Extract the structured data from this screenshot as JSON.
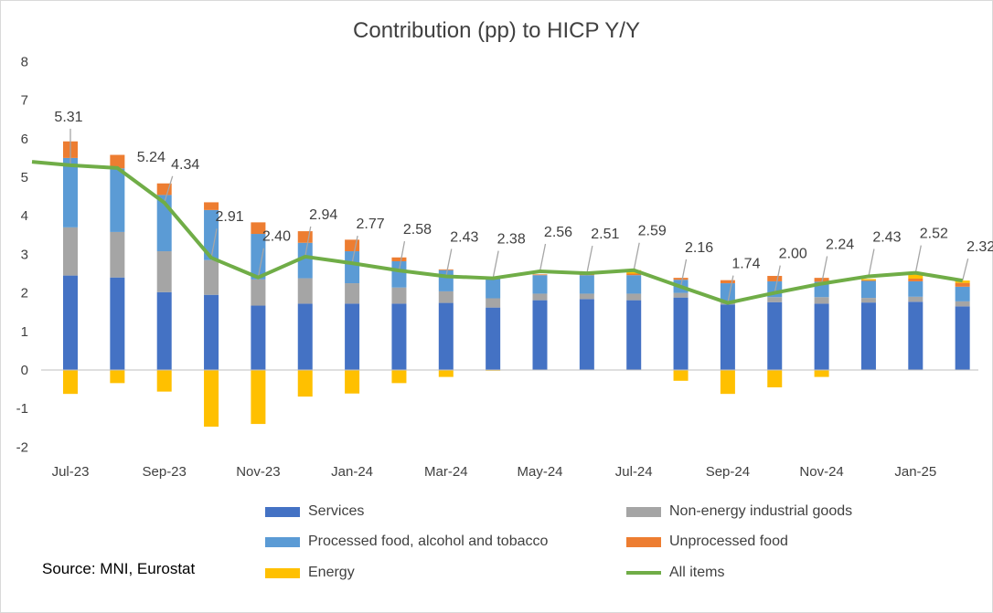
{
  "chart_data": {
    "type": "bar",
    "subtype": "stacked-bar-with-line",
    "title": "Contribution (pp) to HICP Y/Y",
    "ylim": [
      -2,
      8
    ],
    "yticks": [
      -2,
      -1,
      0,
      1,
      2,
      3,
      4,
      5,
      6,
      7,
      8
    ],
    "ytick_labels": [
      "-2",
      "-1",
      "0",
      "1",
      "2",
      "3",
      "4",
      "5",
      "6",
      "7",
      "8"
    ],
    "categories": [
      "Jul-23",
      "Aug-23",
      "Sep-23",
      "Oct-23",
      "Nov-23",
      "Dec-23",
      "Jan-24",
      "Feb-24",
      "Mar-24",
      "Apr-24",
      "May-24",
      "Jun-24",
      "Jul-24",
      "Aug-24",
      "Sep-24",
      "Oct-24",
      "Nov-24",
      "Dec-24",
      "Jan-25",
      "Feb-25"
    ],
    "xtick_labels": [
      "Jul-23",
      "",
      "Sep-23",
      "",
      "Nov-23",
      "",
      "Jan-24",
      "",
      "Mar-24",
      "",
      "May-24",
      "",
      "Jul-24",
      "",
      "Sep-24",
      "",
      "Nov-24",
      "",
      "Jan-25",
      ""
    ],
    "series": [
      {
        "name": "Services",
        "color": "#4472c4",
        "values": [
          2.45,
          2.4,
          2.02,
          1.95,
          1.67,
          1.72,
          1.72,
          1.72,
          1.74,
          1.62,
          1.81,
          1.84,
          1.81,
          1.88,
          1.7,
          1.76,
          1.72,
          1.75,
          1.77,
          1.65
        ]
      },
      {
        "name": "Non-energy industrial goods",
        "color": "#a5a5a5",
        "values": [
          1.25,
          1.18,
          1.06,
          0.9,
          0.68,
          0.66,
          0.53,
          0.42,
          0.3,
          0.24,
          0.17,
          0.14,
          0.17,
          0.12,
          0.05,
          0.13,
          0.17,
          0.12,
          0.13,
          0.13
        ]
      },
      {
        "name": "Processed food, alcohol and tobacco",
        "color": "#5b9bd5",
        "values": [
          1.8,
          1.65,
          1.46,
          1.3,
          1.18,
          0.92,
          0.83,
          0.68,
          0.55,
          0.5,
          0.48,
          0.48,
          0.48,
          0.34,
          0.5,
          0.41,
          0.4,
          0.44,
          0.4,
          0.38
        ]
      },
      {
        "name": "Unprocessed food",
        "color": "#ed7d31",
        "values": [
          0.43,
          0.35,
          0.3,
          0.2,
          0.3,
          0.3,
          0.3,
          0.1,
          0.02,
          0.02,
          0.02,
          0.03,
          0.04,
          0.05,
          0.08,
          0.14,
          0.1,
          0.02,
          0.07,
          0.1
        ]
      },
      {
        "name": "Energy",
        "color": "#ffc000",
        "values": [
          -0.62,
          -0.34,
          -0.56,
          -1.47,
          -1.4,
          -0.69,
          -0.61,
          -0.34,
          -0.18,
          -0.02,
          0.0,
          0.0,
          0.09,
          -0.28,
          -0.62,
          -0.45,
          -0.18,
          0.03,
          0.14,
          0.06
        ]
      }
    ],
    "line": {
      "name": "All items",
      "color": "#70ad47",
      "values": [
        5.31,
        5.24,
        4.34,
        2.91,
        2.4,
        2.94,
        2.77,
        2.58,
        2.43,
        2.38,
        2.56,
        2.51,
        2.59,
        2.16,
        1.74,
        2.0,
        2.24,
        2.43,
        2.52,
        2.32
      ],
      "labels": [
        "5.31",
        "5.24",
        "4.34",
        "2.91",
        "2.40",
        "2.94",
        "2.77",
        "2.58",
        "2.43",
        "2.38",
        "2.56",
        "2.51",
        "2.59",
        "2.16",
        "1.74",
        "2.00",
        "2.24",
        "2.43",
        "2.52",
        "2.32"
      ]
    },
    "line_prefix": [
      5.4
    ],
    "legend_position": "bottom"
  },
  "source": "Source: MNI, Eurostat",
  "legend": {
    "services": "Services",
    "non_energy": "Non-energy industrial goods",
    "processed_food": "Processed food, alcohol and tobacco",
    "unprocessed_food": "Unprocessed food",
    "energy": "Energy",
    "all_items": "All items"
  }
}
